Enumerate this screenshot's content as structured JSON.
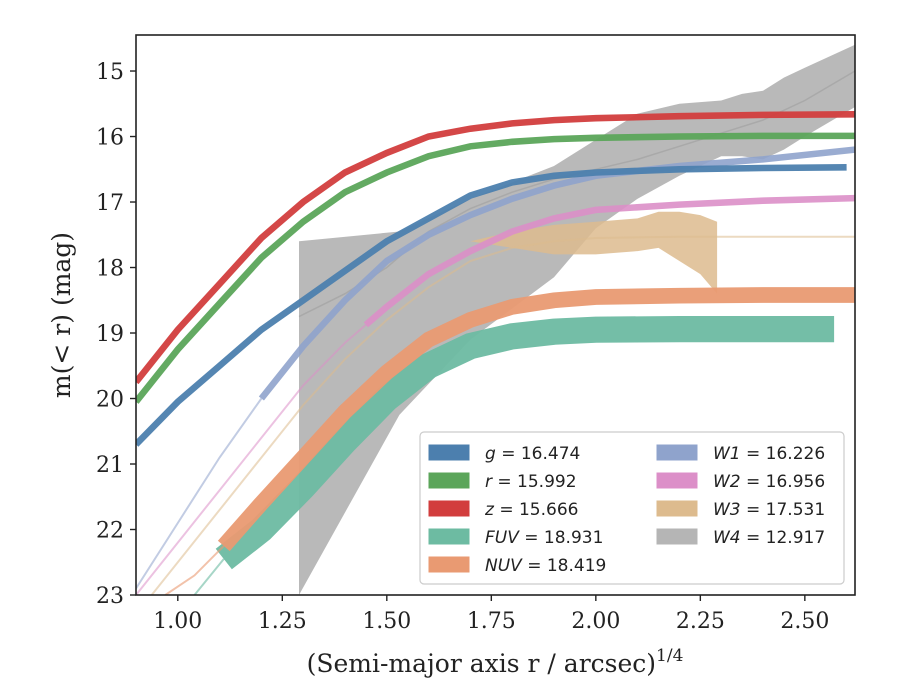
{
  "chart_data": {
    "type": "line",
    "title": "",
    "xlabel": "(Semi-major axis r / arcsec)",
    "xlabel_sup": "1/4",
    "ylabel": "m(< r) (mag)",
    "xlim": [
      0.9,
      2.62
    ],
    "ylim": [
      23.0,
      14.45
    ],
    "y_inverted": true,
    "grid": false,
    "legend_position": "lower-right",
    "x_ticks": [
      1.0,
      1.25,
      1.5,
      1.75,
      2.0,
      2.25,
      2.5
    ],
    "x_tick_labels": [
      "1.00",
      "1.25",
      "1.50",
      "1.75",
      "2.00",
      "2.25",
      "2.50"
    ],
    "y_ticks": [
      15,
      16,
      17,
      18,
      19,
      20,
      21,
      22,
      23
    ],
    "y_tick_labels": [
      "15",
      "16",
      "17",
      "18",
      "19",
      "20",
      "21",
      "22",
      "23"
    ],
    "series": [
      {
        "name": "g = 16.474",
        "label_var": "g",
        "label_val": "16.474",
        "color": "#4c7fae",
        "x": [
          0.9,
          1.0,
          1.1,
          1.2,
          1.3,
          1.4,
          1.5,
          1.6,
          1.7,
          1.8,
          1.9,
          2.0,
          2.2,
          2.4,
          2.6
        ],
        "y": [
          20.7,
          20.05,
          19.5,
          18.95,
          18.5,
          18.05,
          17.6,
          17.25,
          16.9,
          16.7,
          16.6,
          16.55,
          16.5,
          16.48,
          16.47
        ],
        "band": 0.05
      },
      {
        "name": "r = 15.992",
        "label_var": "r",
        "label_val": "15.992",
        "color": "#5ba55a",
        "x": [
          0.9,
          1.0,
          1.1,
          1.2,
          1.3,
          1.4,
          1.5,
          1.6,
          1.7,
          1.8,
          1.9,
          2.0,
          2.2,
          2.4,
          2.62
        ],
        "y": [
          20.05,
          19.25,
          18.55,
          17.85,
          17.3,
          16.85,
          16.55,
          16.3,
          16.15,
          16.08,
          16.04,
          16.02,
          16.0,
          15.99,
          15.99
        ],
        "band": 0.05
      },
      {
        "name": "z = 15.666",
        "label_var": "z",
        "label_val": "15.666",
        "color": "#d23d3d",
        "x": [
          0.9,
          1.0,
          1.1,
          1.2,
          1.3,
          1.4,
          1.5,
          1.6,
          1.7,
          1.8,
          1.9,
          2.0,
          2.2,
          2.4,
          2.62
        ],
        "y": [
          19.75,
          18.95,
          18.25,
          17.55,
          17.0,
          16.55,
          16.25,
          16.0,
          15.88,
          15.8,
          15.75,
          15.72,
          15.69,
          15.67,
          15.66
        ],
        "band": 0.05
      },
      {
        "name": "FUV = 18.931",
        "label_var": "FUV",
        "label_val": "18.931",
        "color": "#6dbba2",
        "x": [
          1.11,
          1.2,
          1.3,
          1.4,
          1.5,
          1.6,
          1.7,
          1.8,
          1.9,
          2.0,
          2.2,
          2.4,
          2.57
        ],
        "y": [
          22.45,
          22.0,
          21.35,
          20.65,
          20.0,
          19.5,
          19.2,
          19.05,
          18.98,
          18.95,
          18.94,
          18.94,
          18.94
        ],
        "band": 0.2,
        "faint_x": [
          1.04,
          1.11
        ],
        "faint_y": [
          23.0,
          22.45
        ]
      },
      {
        "name": "NUV = 18.419",
        "label_var": "NUV",
        "label_val": "18.419",
        "color": "#e99a72",
        "x": [
          1.11,
          1.2,
          1.3,
          1.4,
          1.5,
          1.6,
          1.7,
          1.8,
          1.9,
          2.0,
          2.2,
          2.4,
          2.62
        ],
        "y": [
          22.25,
          21.6,
          20.9,
          20.2,
          19.6,
          19.1,
          18.8,
          18.6,
          18.5,
          18.45,
          18.43,
          18.42,
          18.42
        ],
        "band": 0.12,
        "faint_x": [
          0.97,
          1.04,
          1.11
        ],
        "faint_y": [
          23.0,
          22.7,
          22.25
        ]
      },
      {
        "name": "W1 = 16.226",
        "label_var": "W1",
        "label_val": "16.226",
        "color": "#8fa3cc",
        "x": [
          0.9,
          1.0,
          1.1,
          1.2,
          1.3,
          1.4,
          1.5,
          1.6,
          1.7,
          1.8,
          1.9,
          2.0,
          2.2,
          2.4,
          2.62
        ],
        "y": [
          22.9,
          21.9,
          20.9,
          20.0,
          19.2,
          18.5,
          17.9,
          17.5,
          17.2,
          16.95,
          16.75,
          16.6,
          16.45,
          16.35,
          16.2
        ],
        "band": 0.05,
        "faint_from": 1.2
      },
      {
        "name": "W2 = 16.956",
        "label_var": "W2",
        "label_val": "16.956",
        "color": "#dc8fc8",
        "x": [
          0.9,
          1.0,
          1.1,
          1.2,
          1.3,
          1.4,
          1.5,
          1.6,
          1.7,
          1.8,
          1.9,
          2.0,
          2.2,
          2.4,
          2.62
        ],
        "y": [
          23.0,
          22.2,
          21.4,
          20.6,
          19.8,
          19.15,
          18.6,
          18.1,
          17.75,
          17.45,
          17.25,
          17.12,
          17.04,
          16.98,
          16.94
        ],
        "band": 0.05,
        "faint_from": 1.45
      },
      {
        "name": "W3 = 17.531",
        "label_var": "W3",
        "label_val": "17.531",
        "color": "#ddbb8e",
        "x": [
          0.9,
          1.0,
          1.1,
          1.2,
          1.3,
          1.4,
          1.5,
          1.6,
          1.7,
          1.8,
          1.9,
          2.0,
          2.2,
          2.4,
          2.62
        ],
        "y": [
          23.3,
          22.5,
          21.7,
          20.9,
          20.1,
          19.4,
          18.8,
          18.3,
          17.9,
          17.7,
          17.6,
          17.55,
          17.53,
          17.53,
          17.53
        ],
        "band_x": [
          1.62,
          1.7,
          1.8,
          1.9,
          2.0,
          2.1,
          2.15,
          2.2,
          2.25,
          2.29
        ],
        "band_upper": [
          18.0,
          17.6,
          17.45,
          17.35,
          17.3,
          17.25,
          17.15,
          17.15,
          17.2,
          17.3
        ],
        "band_lower": [
          18.0,
          17.6,
          17.7,
          17.8,
          17.8,
          17.75,
          17.7,
          17.9,
          18.1,
          18.4
        ]
      },
      {
        "name": "W4 = 12.917",
        "label_var": "W4",
        "label_val": "12.917",
        "color": "#b5b5b5",
        "x": [
          1.29,
          1.4,
          1.5,
          1.6,
          1.7,
          1.8,
          1.9,
          2.0,
          2.1,
          2.2,
          2.3,
          2.4,
          2.5,
          2.62
        ],
        "y": [
          18.75,
          18.4,
          18.0,
          17.45,
          17.1,
          16.85,
          16.65,
          16.5,
          16.35,
          16.15,
          15.95,
          15.75,
          15.45,
          15.0
        ],
        "band_x": [
          1.29,
          1.53,
          1.7,
          1.9,
          2.0,
          2.1,
          2.2,
          2.3,
          2.35,
          2.4,
          2.45,
          2.5,
          2.62
        ],
        "band_upper": [
          17.6,
          17.45,
          16.95,
          16.45,
          16.05,
          15.65,
          15.5,
          15.45,
          15.35,
          15.3,
          15.1,
          14.95,
          14.6
        ],
        "band_lower": [
          23.0,
          20.25,
          19.1,
          18.15,
          17.4,
          16.95,
          16.6,
          16.3,
          16.3,
          16.35,
          16.2,
          16.0,
          15.55
        ]
      }
    ]
  }
}
